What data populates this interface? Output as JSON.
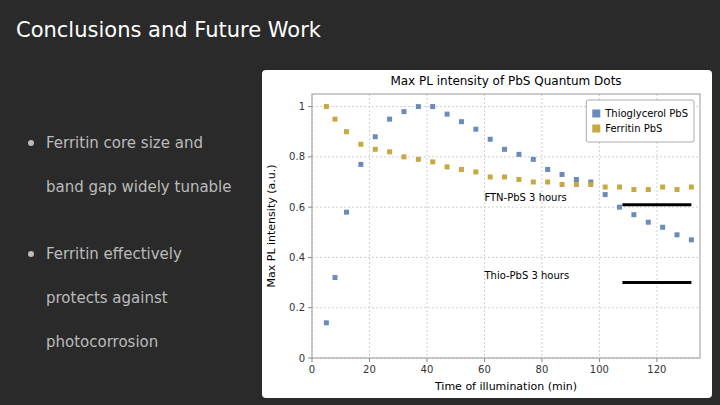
{
  "title": "Conclusions and Future Work",
  "bullets": [
    [
      "Ferritin core size and",
      "band gap widely tunable"
    ],
    [
      "Ferritin effectively",
      "protects against",
      "photocorrosion"
    ]
  ],
  "chart_data": {
    "type": "scatter",
    "title": "Max PL intensity of PbS Quantum Dots",
    "x_label": "Time of illumination (min)",
    "y_label": "Max PL intensity (a.u.)",
    "xlim": [
      0,
      135
    ],
    "ylim": [
      0.0,
      1.05
    ],
    "xticks": [
      0,
      20,
      40,
      60,
      80,
      100,
      120
    ],
    "yticks": [
      0.0,
      0.2,
      0.4,
      0.6,
      0.8,
      1.0
    ],
    "grid": true,
    "legend": "upper right",
    "marker": "square",
    "series": [
      {
        "name": "Thioglycerol PbS",
        "color": "#6b8cba",
        "x": [
          5,
          8,
          12,
          17,
          22,
          27,
          32,
          37,
          42,
          47,
          52,
          57,
          62,
          67,
          72,
          77,
          82,
          87,
          92,
          97,
          102,
          107,
          112,
          117,
          122,
          127,
          132
        ],
        "values": [
          0.14,
          0.32,
          0.58,
          0.77,
          0.88,
          0.95,
          0.98,
          1.0,
          1.0,
          0.97,
          0.94,
          0.91,
          0.87,
          0.83,
          0.81,
          0.79,
          0.75,
          0.73,
          0.71,
          0.7,
          0.65,
          0.6,
          0.57,
          0.54,
          0.52,
          0.49,
          0.47
        ]
      },
      {
        "name": "Ferritin PbS",
        "color": "#c8a840",
        "x": [
          5,
          8,
          12,
          17,
          22,
          27,
          32,
          37,
          42,
          47,
          52,
          57,
          62,
          67,
          72,
          77,
          82,
          87,
          92,
          97,
          102,
          107,
          112,
          117,
          122,
          127,
          132
        ],
        "values": [
          1.0,
          0.95,
          0.9,
          0.85,
          0.83,
          0.82,
          0.8,
          0.79,
          0.78,
          0.76,
          0.75,
          0.74,
          0.72,
          0.72,
          0.71,
          0.7,
          0.7,
          0.69,
          0.69,
          0.69,
          0.68,
          0.68,
          0.67,
          0.67,
          0.68,
          0.67,
          0.68
        ]
      }
    ],
    "annotations": [
      {
        "text": "FTN-PbS 3 hours",
        "x": 60,
        "y": 0.61,
        "bar_x": [
          108,
          132
        ]
      },
      {
        "text": "Thio-PbS 3 hours",
        "x": 60,
        "y": 0.3,
        "bar_x": [
          108,
          132
        ]
      }
    ]
  }
}
